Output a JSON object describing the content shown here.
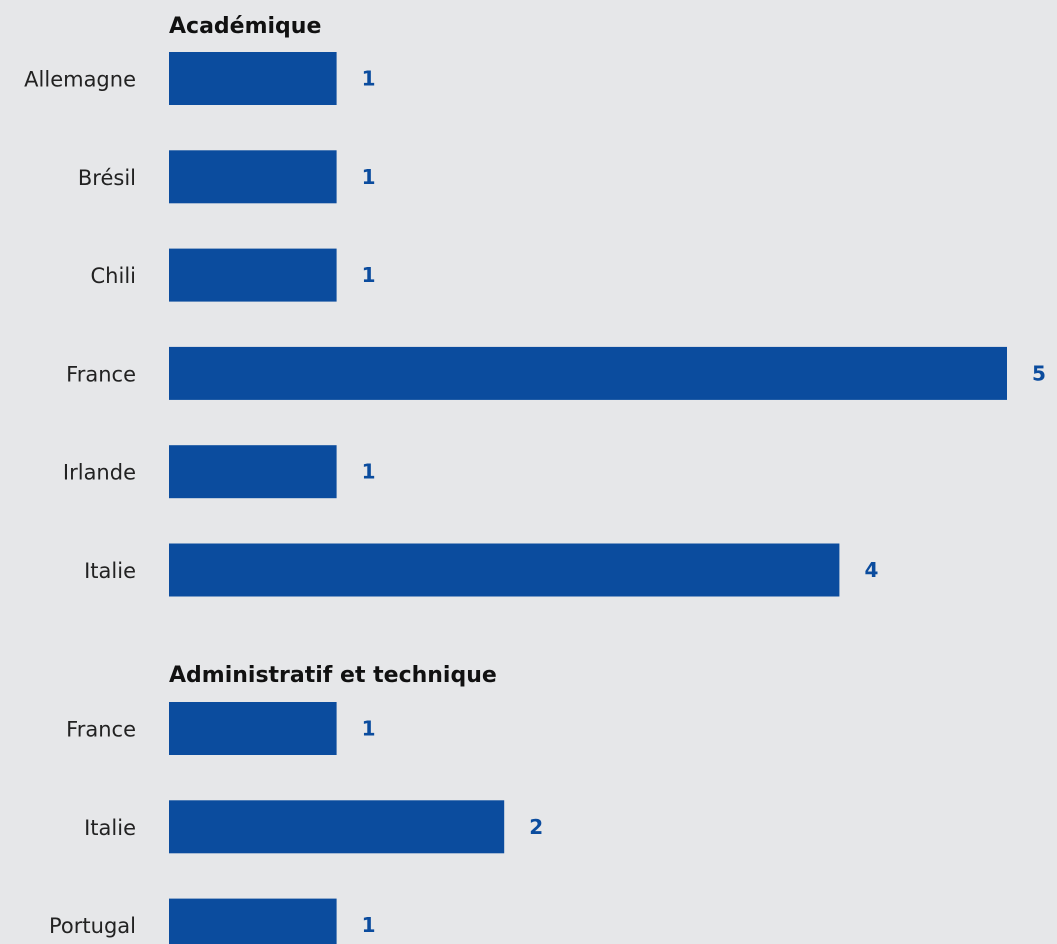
{
  "chart_data": [
    {
      "type": "bar",
      "orientation": "horizontal",
      "title": "Académique",
      "categories": [
        "Allemagne",
        "Brésil",
        "Chili",
        "France",
        "Irlande",
        "Italie"
      ],
      "values": [
        1,
        1,
        1,
        5,
        1,
        4
      ],
      "xlim": [
        0,
        5
      ],
      "grid": false,
      "legend": "none"
    },
    {
      "type": "bar",
      "orientation": "horizontal",
      "title": "Administratif et technique",
      "categories": [
        "France",
        "Italie",
        "Portugal"
      ],
      "values": [
        1,
        2,
        1
      ],
      "xlim": [
        0,
        5
      ],
      "grid": false,
      "legend": "none"
    }
  ],
  "colors": {
    "bar": "#0b4c9e",
    "value_label": "#0b4c9e",
    "background": "#e6e7e9"
  }
}
